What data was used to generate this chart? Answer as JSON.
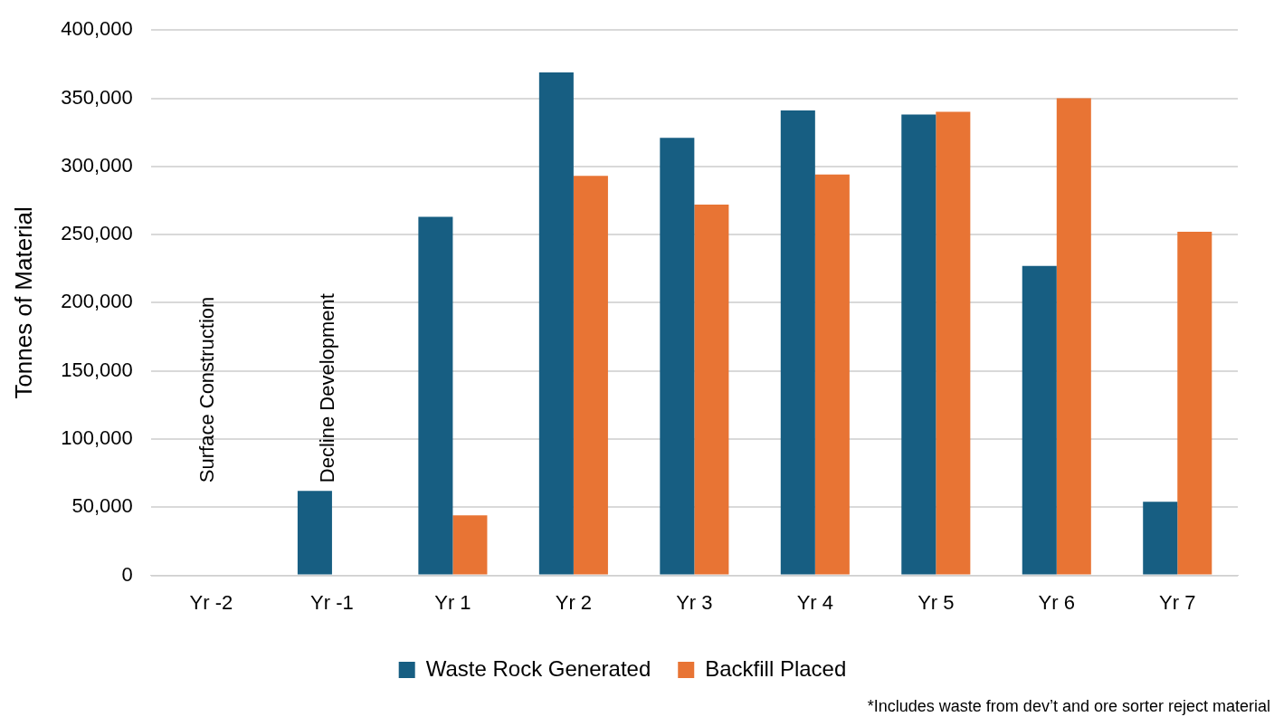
{
  "chart_data": {
    "type": "bar",
    "ylabel": "Tonnes of Material",
    "categories": [
      "Yr -2",
      "Yr -1",
      "Yr 1",
      "Yr 2",
      "Yr 3",
      "Yr 4",
      "Yr 5",
      "Yr 6",
      "Yr 7"
    ],
    "series": [
      {
        "name": "Waste Rock Generated",
        "color": "#175e82",
        "values": [
          null,
          62000,
          263000,
          369000,
          321000,
          341000,
          338000,
          227000,
          54000
        ]
      },
      {
        "name": "Backfill Placed",
        "color": "#e87434",
        "values": [
          null,
          null,
          44000,
          293000,
          272000,
          294000,
          340000,
          350000,
          252000
        ]
      }
    ],
    "ylim": [
      0,
      400000
    ],
    "yticks": [
      0,
      {
        "value": 50000,
        "label": "50,000"
      },
      {
        "value": 100000,
        "label": "100,000"
      },
      {
        "value": 150000,
        "label": "150,000"
      },
      {
        "value": 200000,
        "label": "200,000"
      },
      {
        "value": 250000,
        "label": "250,000"
      },
      {
        "value": 300000,
        "label": "300,000"
      },
      {
        "value": 350000,
        "label": "350,000"
      },
      {
        "value": 400000,
        "label": "400,000"
      }
    ],
    "grid": "y",
    "legend": "bottom",
    "annotations": [
      "Surface Construction",
      "Decline Development",
      "*Includes waste from dev’t and ore sorter reject material"
    ]
  }
}
